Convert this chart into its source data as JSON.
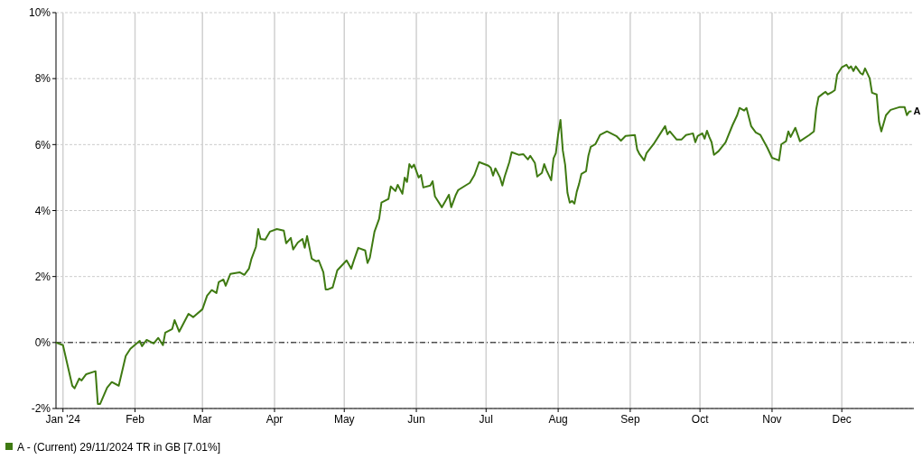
{
  "chart_data": {
    "type": "line",
    "x": [
      "2023-12-29",
      "2024-01-01",
      "2024-01-05",
      "2024-01-06",
      "2024-01-08",
      "2024-01-09",
      "2024-01-11",
      "2024-01-15",
      "2024-01-16",
      "2024-01-17",
      "2024-01-20",
      "2024-01-22",
      "2024-01-25",
      "2024-01-28",
      "2024-01-30",
      "2024-02-03",
      "2024-02-04",
      "2024-02-06",
      "2024-02-09",
      "2024-02-11",
      "2024-02-13",
      "2024-02-14",
      "2024-02-17",
      "2024-02-18",
      "2024-02-20",
      "2024-02-24",
      "2024-02-26",
      "2024-03-01",
      "2024-03-03",
      "2024-03-05",
      "2024-03-07",
      "2024-03-08",
      "2024-03-10",
      "2024-03-11",
      "2024-03-13",
      "2024-03-17",
      "2024-03-19",
      "2024-03-21",
      "2024-03-22",
      "2024-03-24",
      "2024-03-25",
      "2024-03-26",
      "2024-03-28",
      "2024-03-30",
      "2024-04-02",
      "2024-04-05",
      "2024-04-06",
      "2024-04-08",
      "2024-04-09",
      "2024-04-11",
      "2024-04-13",
      "2024-04-14",
      "2024-04-15",
      "2024-04-17",
      "2024-04-19",
      "2024-04-20",
      "2024-04-22",
      "2024-04-23",
      "2024-04-24",
      "2024-04-26",
      "2024-04-28",
      "2024-05-02",
      "2024-05-04",
      "2024-05-05",
      "2024-05-07",
      "2024-05-10",
      "2024-05-11",
      "2024-05-12",
      "2024-05-14",
      "2024-05-16",
      "2024-05-17",
      "2024-05-20",
      "2024-05-21",
      "2024-05-23",
      "2024-05-24",
      "2024-05-26",
      "2024-05-27",
      "2024-05-28",
      "2024-05-29",
      "2024-05-30",
      "2024-05-31",
      "2024-06-02",
      "2024-06-03",
      "2024-06-04",
      "2024-06-07",
      "2024-06-08",
      "2024-06-09",
      "2024-06-12",
      "2024-06-14",
      "2024-06-15",
      "2024-06-16",
      "2024-06-18",
      "2024-06-19",
      "2024-06-24",
      "2024-06-26",
      "2024-06-28",
      "2024-07-02",
      "2024-07-03",
      "2024-07-04",
      "2024-07-05",
      "2024-07-07",
      "2024-07-08",
      "2024-07-09",
      "2024-07-11",
      "2024-07-12",
      "2024-07-15",
      "2024-07-17",
      "2024-07-19",
      "2024-07-20",
      "2024-07-22",
      "2024-07-23",
      "2024-07-25",
      "2024-07-26",
      "2024-07-27",
      "2024-07-29",
      "2024-07-30",
      "2024-07-31",
      "2024-08-01",
      "2024-08-02",
      "2024-08-03",
      "2024-08-04",
      "2024-08-05",
      "2024-08-06",
      "2024-08-07",
      "2024-08-08",
      "2024-08-09",
      "2024-08-10",
      "2024-08-11",
      "2024-08-13",
      "2024-08-14",
      "2024-08-15",
      "2024-08-17",
      "2024-08-19",
      "2024-08-22",
      "2024-08-26",
      "2024-08-28",
      "2024-08-30",
      "2024-09-03",
      "2024-09-04",
      "2024-09-05",
      "2024-09-07",
      "2024-09-08",
      "2024-09-11",
      "2024-09-14",
      "2024-09-16",
      "2024-09-17",
      "2024-09-18",
      "2024-09-21",
      "2024-09-23",
      "2024-09-25",
      "2024-09-28",
      "2024-09-29",
      "2024-09-30",
      "2024-10-02",
      "2024-10-03",
      "2024-10-04",
      "2024-10-05",
      "2024-10-06",
      "2024-10-07",
      "2024-10-09",
      "2024-10-12",
      "2024-10-15",
      "2024-10-17",
      "2024-10-18",
      "2024-10-20",
      "2024-10-21",
      "2024-10-23",
      "2024-10-25",
      "2024-10-27",
      "2024-10-30",
      "2024-11-01",
      "2024-11-04",
      "2024-11-05",
      "2024-11-07",
      "2024-11-08",
      "2024-11-09",
      "2024-11-11",
      "2024-11-13",
      "2024-11-17",
      "2024-11-19",
      "2024-11-20",
      "2024-11-21",
      "2024-11-23",
      "2024-11-24",
      "2024-11-25",
      "2024-11-27",
      "2024-11-28",
      "2024-11-29",
      "2024-12-01",
      "2024-12-03",
      "2024-12-04",
      "2024-12-05",
      "2024-12-06",
      "2024-12-07",
      "2024-12-09",
      "2024-12-10",
      "2024-12-11",
      "2024-12-13",
      "2024-12-14",
      "2024-12-16",
      "2024-12-17",
      "2024-12-18",
      "2024-12-20",
      "2024-12-22",
      "2024-12-26",
      "2024-12-28",
      "2024-12-29",
      "2024-12-30",
      "2024-12-31"
    ],
    "series": [
      {
        "name": "A - (Current) 29/11/2024 TR in GB [7.01%]",
        "color": "#3f7a12",
        "values": [
          0,
          -0.08,
          -1.31,
          -1.39,
          -1.09,
          -1.15,
          -0.96,
          -0.87,
          -1.86,
          -1.86,
          -1.37,
          -1.2,
          -1.31,
          -0.41,
          -0.19,
          0.05,
          -0.11,
          0.08,
          -0.03,
          0.14,
          -0.08,
          0.3,
          0.41,
          0.68,
          0.33,
          0.87,
          0.77,
          1.01,
          1.42,
          1.59,
          1.5,
          1.83,
          1.91,
          1.72,
          2.08,
          2.13,
          2.05,
          2.24,
          2.52,
          2.9,
          3.44,
          3.14,
          3.12,
          3.36,
          3.44,
          3.39,
          3.01,
          3.17,
          2.82,
          3.03,
          3.14,
          2.87,
          3.23,
          2.54,
          2.46,
          2.49,
          2.13,
          1.61,
          1.61,
          1.67,
          2.19,
          2.49,
          2.24,
          2.46,
          2.87,
          2.79,
          2.41,
          2.57,
          3.36,
          3.75,
          4.24,
          4.35,
          4.73,
          4.59,
          4.78,
          4.51,
          5.0,
          4.87,
          5.41,
          5.3,
          5.39,
          5.0,
          5.08,
          4.7,
          4.76,
          4.89,
          4.43,
          4.1,
          4.35,
          4.48,
          4.1,
          4.48,
          4.62,
          4.84,
          5.08,
          5.47,
          5.36,
          5.3,
          5.06,
          5.28,
          5.0,
          4.76,
          5.03,
          5.47,
          5.77,
          5.69,
          5.71,
          5.55,
          5.66,
          5.44,
          5.03,
          5.14,
          5.41,
          5.22,
          4.92,
          5.58,
          5.74,
          6.31,
          6.75,
          5.82,
          5.39,
          4.54,
          4.24,
          4.29,
          4.21,
          4.57,
          4.81,
          5.11,
          5.19,
          5.66,
          5.93,
          6.01,
          6.29,
          6.4,
          6.26,
          6.12,
          6.26,
          6.29,
          5.85,
          5.71,
          5.52,
          5.74,
          6.01,
          6.34,
          6.56,
          6.31,
          6.4,
          6.15,
          6.15,
          6.29,
          6.34,
          6.07,
          6.26,
          6.34,
          6.18,
          6.42,
          6.23,
          6.07,
          5.69,
          5.8,
          6.07,
          6.59,
          6.89,
          7.11,
          7.03,
          7.11,
          6.56,
          6.37,
          6.29,
          5.9,
          5.6,
          5.52,
          6.01,
          6.1,
          6.4,
          6.23,
          6.51,
          6.1,
          6.29,
          6.4,
          7.08,
          7.44,
          7.55,
          7.6,
          7.52,
          7.6,
          7.65,
          8.12,
          8.34,
          8.42,
          8.31,
          8.37,
          8.23,
          8.37,
          8.17,
          8.12,
          8.31,
          8.01,
          7.57,
          7.52,
          6.7,
          6.4,
          6.89,
          7.05,
          7.14,
          7.14,
          6.89,
          7.0,
          7.01
        ]
      }
    ],
    "xlim": [
      "2023-12-29",
      "2025-01-01"
    ],
    "xticks": [
      {
        "value": "2024-01-01",
        "label": "Jan '24"
      },
      {
        "value": "2024-02-01",
        "label": "Feb"
      },
      {
        "value": "2024-03-01",
        "label": "Mar"
      },
      {
        "value": "2024-04-01",
        "label": "Apr"
      },
      {
        "value": "2024-05-01",
        "label": "May"
      },
      {
        "value": "2024-06-01",
        "label": "Jun"
      },
      {
        "value": "2024-07-01",
        "label": "Jul"
      },
      {
        "value": "2024-08-01",
        "label": "Aug"
      },
      {
        "value": "2024-09-01",
        "label": "Sep"
      },
      {
        "value": "2024-10-01",
        "label": "Oct"
      },
      {
        "value": "2024-11-01",
        "label": "Nov"
      },
      {
        "value": "2024-12-01",
        "label": "Dec"
      }
    ],
    "ylim": [
      -2,
      10
    ],
    "yticks": [
      {
        "value": -2,
        "label": "-2%"
      },
      {
        "value": 0,
        "label": "0%"
      },
      {
        "value": 2,
        "label": "2%"
      },
      {
        "value": 4,
        "label": "4%"
      },
      {
        "value": 6,
        "label": "6%"
      },
      {
        "value": 8,
        "label": "8%"
      },
      {
        "value": 10,
        "label": "10%"
      }
    ],
    "ref_lines": [
      {
        "axis": "y",
        "value": 0,
        "color": "#000000",
        "line_style": "dashed"
      }
    ],
    "annotations": [
      {
        "text": "A",
        "x": "2024-12-31",
        "y": 7.01
      }
    ],
    "grid": true,
    "legend": "bottom left",
    "line_style": "solid",
    "marker": "none"
  }
}
